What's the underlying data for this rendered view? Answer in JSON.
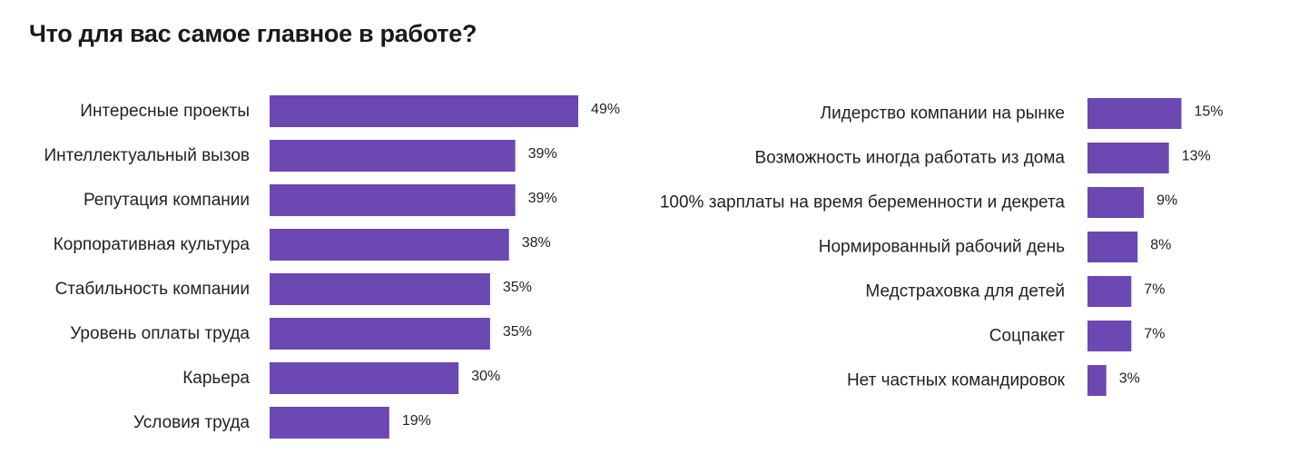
{
  "title": "Что для вас самое главное в работе?",
  "colors": {
    "bar": "#6c48b3",
    "text": "#222222"
  },
  "chart_data": [
    {
      "type": "bar",
      "orientation": "horizontal",
      "categories": [
        "Интересные проекты",
        "Интеллектуальный вызов",
        "Репутация компании",
        "Корпоративная культура",
        "Стабильность компании",
        "Уровень оплаты труда",
        "Карьера",
        "Условия труда"
      ],
      "values": [
        49,
        39,
        39,
        38,
        35,
        35,
        30,
        19
      ],
      "value_labels": [
        "49%",
        "39%",
        "39%",
        "38%",
        "35%",
        "35%",
        "30%",
        "19%"
      ],
      "unit": "%"
    },
    {
      "type": "bar",
      "orientation": "horizontal",
      "categories": [
        "Лидерство компании на рынке",
        "Возможность иногда работать из дома",
        "100% зарплаты на время беременности и декрета",
        "Нормированный рабочий день",
        "Медстраховка для детей",
        "Соцпакет",
        "Нет частных командировок"
      ],
      "values": [
        15,
        13,
        9,
        8,
        7,
        7,
        3
      ],
      "value_labels": [
        "15%",
        "13%",
        "9%",
        "8%",
        "7%",
        "7%",
        "3%"
      ],
      "unit": "%"
    }
  ]
}
